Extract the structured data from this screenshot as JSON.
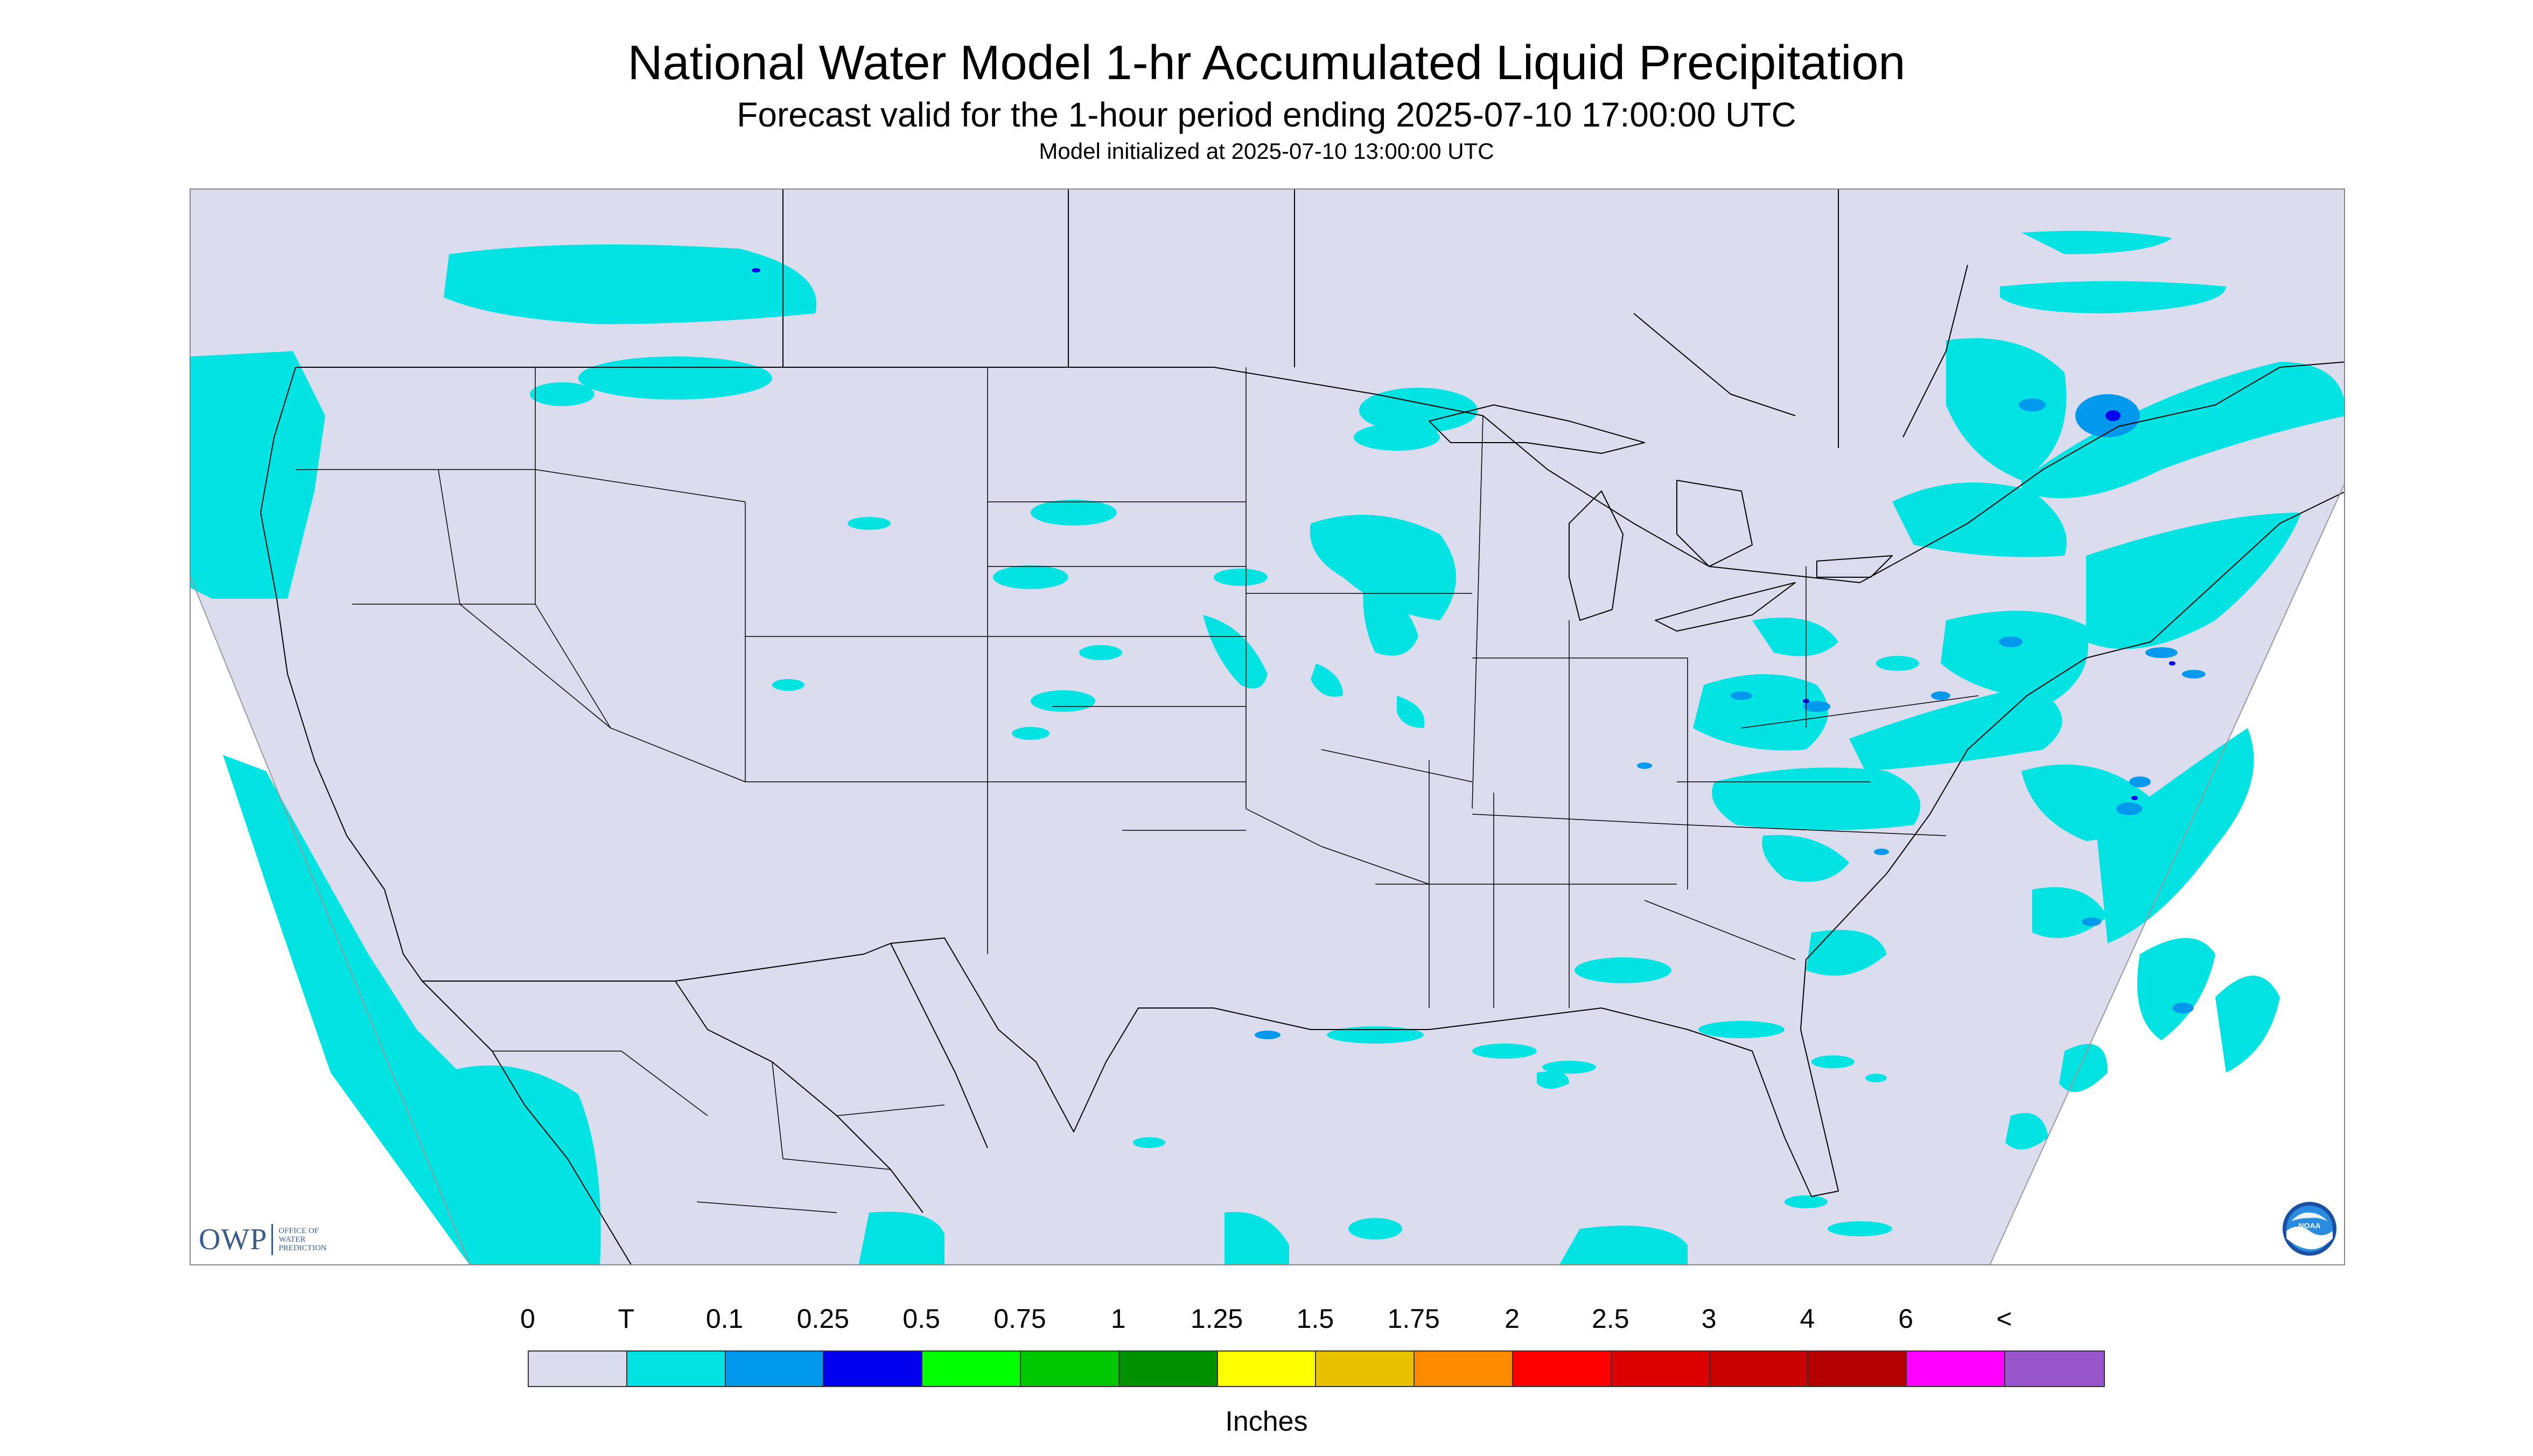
{
  "title": "National Water Model 1-hr Accumulated Liquid Precipitation",
  "subtitle": "Forecast valid for the 1-hour period ending 2025-07-10 17:00:00 UTC",
  "init_line": "Model initialized at 2025-07-10 13:00:00 UTC",
  "logo": {
    "letters": "OWP",
    "subtext": [
      "OFFICE OF",
      "WATER",
      "PREDICTION"
    ],
    "agency_logo": "noaa-logo-icon",
    "agency_text": "NOAA"
  },
  "legend": {
    "labels": [
      "0",
      "T",
      "0.1",
      "0.25",
      "0.5",
      "0.75",
      "1",
      "1.25",
      "1.5",
      "1.75",
      "2",
      "2.5",
      "3",
      "4",
      "6",
      "<"
    ],
    "colors": [
      "#dcdcef",
      "#00e3e3",
      "#0099ee",
      "#0000ee",
      "#00ff00",
      "#00c800",
      "#009000",
      "#ffff00",
      "#e8c200",
      "#ff8c00",
      "#ff0000",
      "#dc0000",
      "#c80000",
      "#b40000",
      "#ff00ff",
      "#9955cc"
    ],
    "units": "Inches"
  },
  "colors": {
    "no_precip": "#dcdcef",
    "trace": "#00e3e3",
    "light": "#0099ee",
    "moderate": "#0000ee",
    "border_lines": "#000000"
  }
}
